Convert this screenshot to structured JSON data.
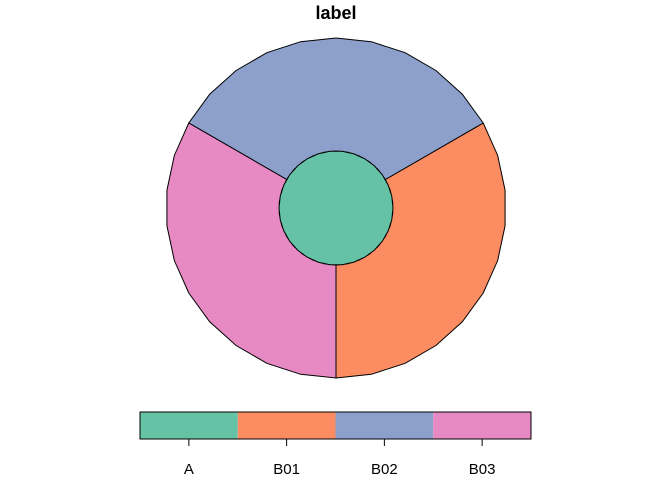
{
  "chart_data": {
    "type": "pie",
    "subtype": "sunburst",
    "title": "label",
    "center": {
      "label": "A",
      "color": "#66C2A5"
    },
    "slices": [
      {
        "label": "B01",
        "value": 1,
        "color": "#FC8D62"
      },
      {
        "label": "B02",
        "value": 1,
        "color": "#8DA0CB"
      },
      {
        "label": "B03",
        "value": 1,
        "color": "#E78AC3"
      }
    ],
    "legend": {
      "position": "bottom",
      "items": [
        {
          "label": "A",
          "color": "#66C2A5"
        },
        {
          "label": "B01",
          "color": "#FC8D62"
        },
        {
          "label": "B02",
          "color": "#8DA0CB"
        },
        {
          "label": "B03",
          "color": "#E78AC3"
        }
      ]
    }
  }
}
